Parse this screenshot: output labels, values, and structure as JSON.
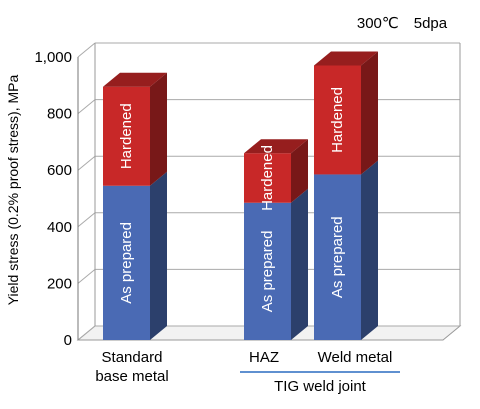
{
  "chart_data": {
    "type": "bar",
    "stacked": true,
    "title": "",
    "annotation": "300℃　5dpa",
    "ylabel": "Yield stress (0.2% proof stress), MPa",
    "xlabel": "",
    "ylim": [
      0,
      1000
    ],
    "yticks": [
      "0",
      "200",
      "400",
      "600",
      "800",
      "1,000"
    ],
    "grid": true,
    "categories": [
      {
        "lines": [
          "Standard",
          "base metal"
        ]
      },
      {
        "lines": [
          "HAZ"
        ]
      },
      {
        "lines": [
          "Weld metal"
        ]
      }
    ],
    "group_label": "TIG weld joint",
    "series": [
      {
        "name": "As prepared",
        "color": "#4a6ab4",
        "values": [
          545,
          485,
          585
        ]
      },
      {
        "name": "Hardened",
        "color": "#c82828",
        "values": [
          350,
          175,
          385
        ]
      }
    ]
  }
}
